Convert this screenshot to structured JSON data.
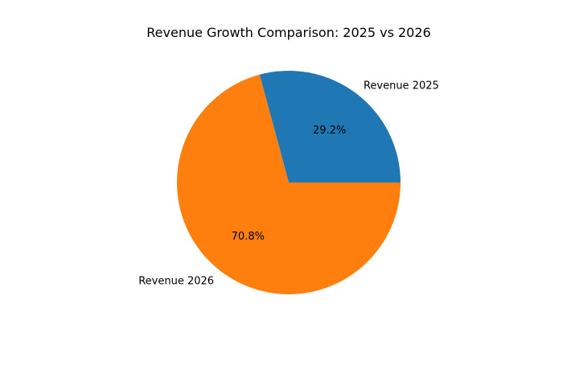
{
  "chart_data": {
    "type": "pie",
    "title": "Revenue Growth Comparison: 2025 vs 2026",
    "labels": [
      "Revenue 2025",
      "Revenue 2026"
    ],
    "values": [
      29.2,
      70.8
    ],
    "pct_labels": [
      "29.2%",
      "70.8%"
    ],
    "colors": [
      "#1f77b4",
      "#ff7f0e"
    ],
    "start_angle": 0,
    "direction": "counterclockwise"
  }
}
